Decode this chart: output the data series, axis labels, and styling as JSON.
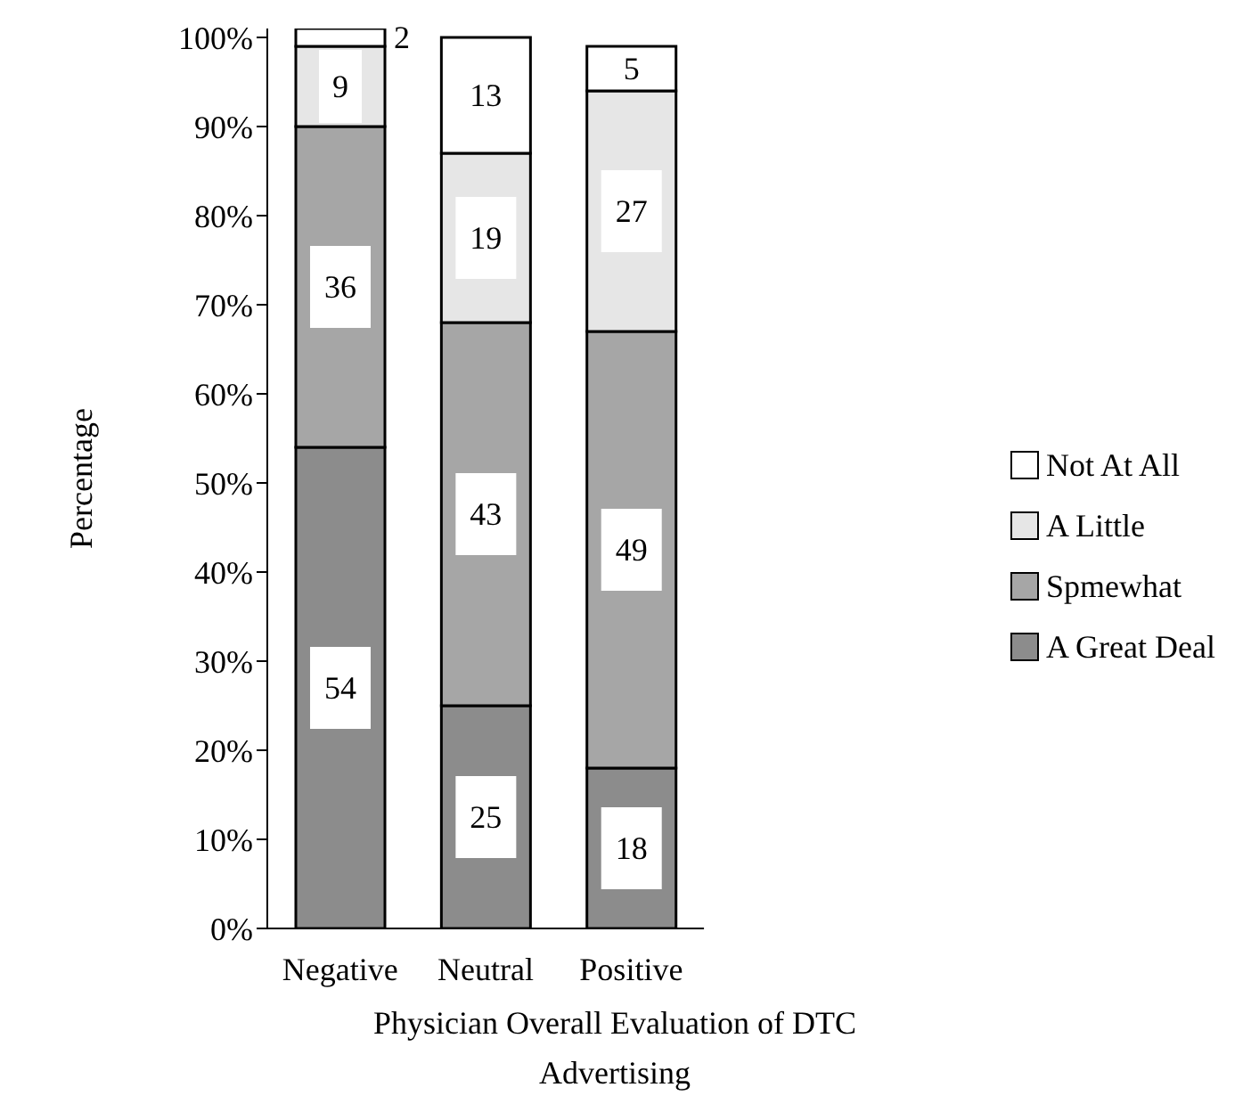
{
  "chart_data": {
    "type": "bar",
    "stacked": true,
    "xlabel": "Physician Overall Evaluation of DTC Advertising",
    "ylabel": "Percentage",
    "categories": [
      "Negative",
      "Neutral",
      "Positive"
    ],
    "ylim": [
      0,
      101
    ],
    "yticks": [
      {
        "value": 0,
        "label": "0%"
      },
      {
        "value": 10,
        "label": "10%"
      },
      {
        "value": 20,
        "label": "20%"
      },
      {
        "value": 30,
        "label": "30%"
      },
      {
        "value": 40,
        "label": "40%"
      },
      {
        "value": 50,
        "label": "50%"
      },
      {
        "value": 60,
        "label": "60%"
      },
      {
        "value": 70,
        "label": "70%"
      },
      {
        "value": 80,
        "label": "80%"
      },
      {
        "value": 90,
        "label": "90%"
      },
      {
        "value": 100,
        "label": "100%"
      }
    ],
    "grid": false,
    "legend": "right",
    "series": [
      {
        "name": "A Great Deal",
        "color": "#8c8c8c",
        "values": [
          54,
          25,
          18
        ],
        "value_labels": [
          "54",
          "25",
          "18"
        ]
      },
      {
        "name": "Spmewhat",
        "color": "#a6a6a6",
        "values": [
          36,
          43,
          49
        ],
        "value_labels": [
          "36",
          "43",
          "49"
        ]
      },
      {
        "name": "A Little",
        "color": "#e6e6e6",
        "values": [
          9,
          19,
          27
        ],
        "value_labels": [
          "9",
          "19",
          "27"
        ]
      },
      {
        "name": "Not At All",
        "color": "#ffffff",
        "values": [
          2,
          13,
          5
        ],
        "value_labels": [
          "2",
          "13",
          "5"
        ]
      }
    ]
  }
}
